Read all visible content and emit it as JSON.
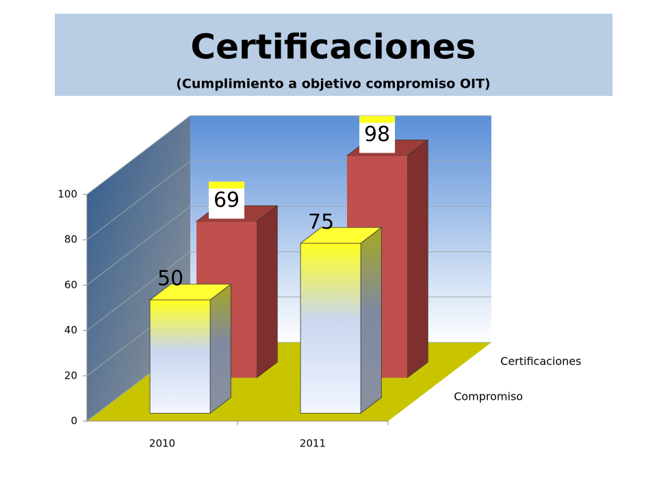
{
  "chart_data": {
    "type": "bar3d",
    "title": "Certificaciones",
    "subtitle": "(Cumplimiento a objetivo compromiso OIT)",
    "categories": [
      "2010",
      "2011"
    ],
    "series": [
      {
        "name": "Compromiso",
        "color": "#ffff33",
        "values": [
          50,
          75
        ]
      },
      {
        "name": "Certificaciones",
        "color": "#c0504d",
        "values": [
          69,
          98
        ]
      }
    ],
    "ylim": [
      0,
      100
    ],
    "yticks": [
      0,
      20,
      40,
      60,
      80,
      100
    ],
    "grid": true
  }
}
